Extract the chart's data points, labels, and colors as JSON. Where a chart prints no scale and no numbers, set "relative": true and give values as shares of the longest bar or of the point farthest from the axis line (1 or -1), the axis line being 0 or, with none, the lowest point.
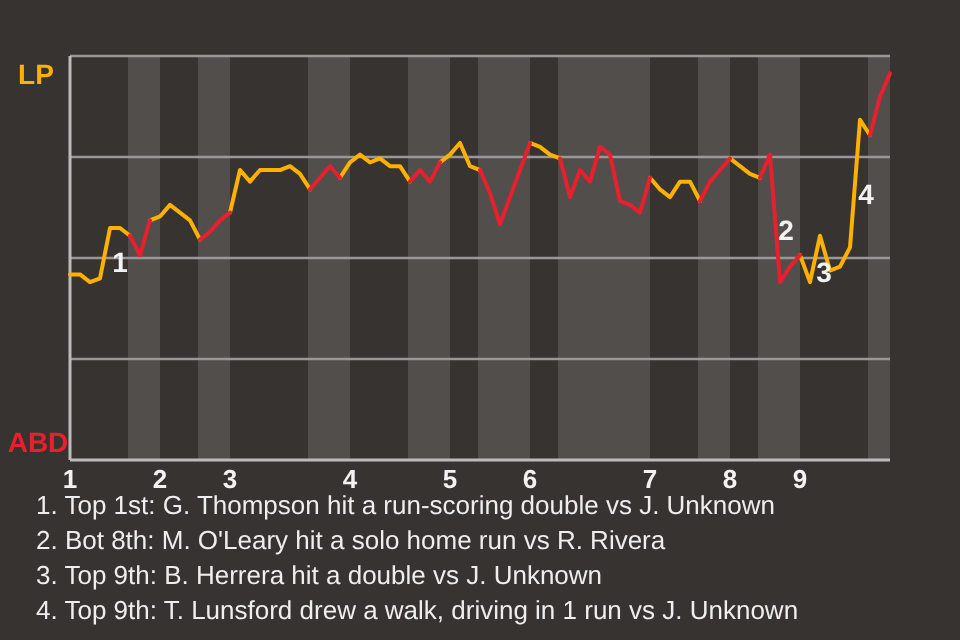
{
  "chart_data": {
    "type": "line",
    "relative": true,
    "categories": [
      "1",
      null,
      null,
      null,
      null,
      null,
      null,
      null,
      null,
      "2",
      null,
      null,
      null,
      null,
      null,
      null,
      "3",
      null,
      null,
      null,
      null,
      null,
      null,
      null,
      null,
      null,
      null,
      null,
      "4",
      null,
      null,
      null,
      null,
      null,
      null,
      null,
      null,
      null,
      "5",
      null,
      null,
      null,
      null,
      null,
      null,
      null,
      "6",
      null,
      null,
      null,
      null,
      null,
      null,
      null,
      null,
      null,
      null,
      null,
      "7",
      null,
      null,
      null,
      null,
      null,
      null,
      null,
      "8",
      null,
      null,
      null,
      null,
      null,
      null,
      "9",
      null,
      null,
      null,
      null,
      null,
      null,
      null,
      null,
      null
    ],
    "series": [
      {
        "color": "#ffb000",
        "values": [
          0.48,
          0.48,
          0.46,
          0.47,
          0.6,
          0.6,
          0.58,
          null,
          0.62,
          0.63,
          0.66,
          0.64,
          0.62,
          0.57,
          null,
          null,
          0.64,
          0.75,
          0.72,
          0.75,
          0.75,
          0.75,
          0.76,
          0.74,
          0.7,
          null,
          null,
          0.73,
          0.77,
          0.79,
          0.77,
          0.78,
          0.76,
          0.76,
          0.72,
          null,
          null,
          0.77,
          0.79,
          0.82,
          0.76,
          0.75,
          null,
          null,
          null,
          null,
          0.82,
          0.81,
          0.79,
          0.78,
          null,
          null,
          null,
          null,
          null,
          null,
          null,
          null,
          0.73,
          0.7,
          0.68,
          0.72,
          0.72,
          0.67,
          null,
          null,
          0.78,
          0.76,
          0.74,
          0.73,
          null,
          null,
          null,
          0.53,
          0.46,
          0.58,
          0.49,
          0.5,
          0.55,
          0.88,
          0.84,
          null,
          null
        ]
      },
      {
        "color": "#e8202e",
        "values": [
          null,
          null,
          null,
          null,
          null,
          null,
          0.58,
          0.53,
          0.62,
          null,
          null,
          null,
          null,
          0.57,
          0.59,
          0.62,
          0.64,
          null,
          null,
          null,
          null,
          null,
          null,
          null,
          0.7,
          0.73,
          0.76,
          0.73,
          null,
          null,
          null,
          null,
          null,
          null,
          0.72,
          0.75,
          0.72,
          0.77,
          null,
          null,
          null,
          0.75,
          0.69,
          0.61,
          0.68,
          0.75,
          0.82,
          null,
          null,
          0.78,
          0.68,
          0.75,
          0.72,
          0.81,
          0.79,
          0.67,
          0.66,
          0.64,
          0.73,
          null,
          null,
          null,
          null,
          0.67,
          0.72,
          0.75,
          0.78,
          null,
          null,
          0.73,
          0.79,
          0.46,
          0.5,
          0.53,
          null,
          null,
          null,
          null,
          null,
          null,
          0.84,
          0.94,
          1
        ]
      }
    ],
    "grid": "y",
    "annotations": [
      "LP",
      "ABD",
      "1",
      "2",
      "3",
      "4",
      "1. Top 1st: G. Thompson hit a run-scoring double vs J. Unknown",
      "2. Bot 8th: M. O'Leary hit a solo home run vs R. Rivera",
      "3. Top 9th: B. Herrera hit a double vs J. Unknown",
      "4. Top 9th: T. Lunsford drew a walk, driving in 1 run vs J. Unknown"
    ],
    "marker": "none",
    "line_style": "solid"
  }
}
